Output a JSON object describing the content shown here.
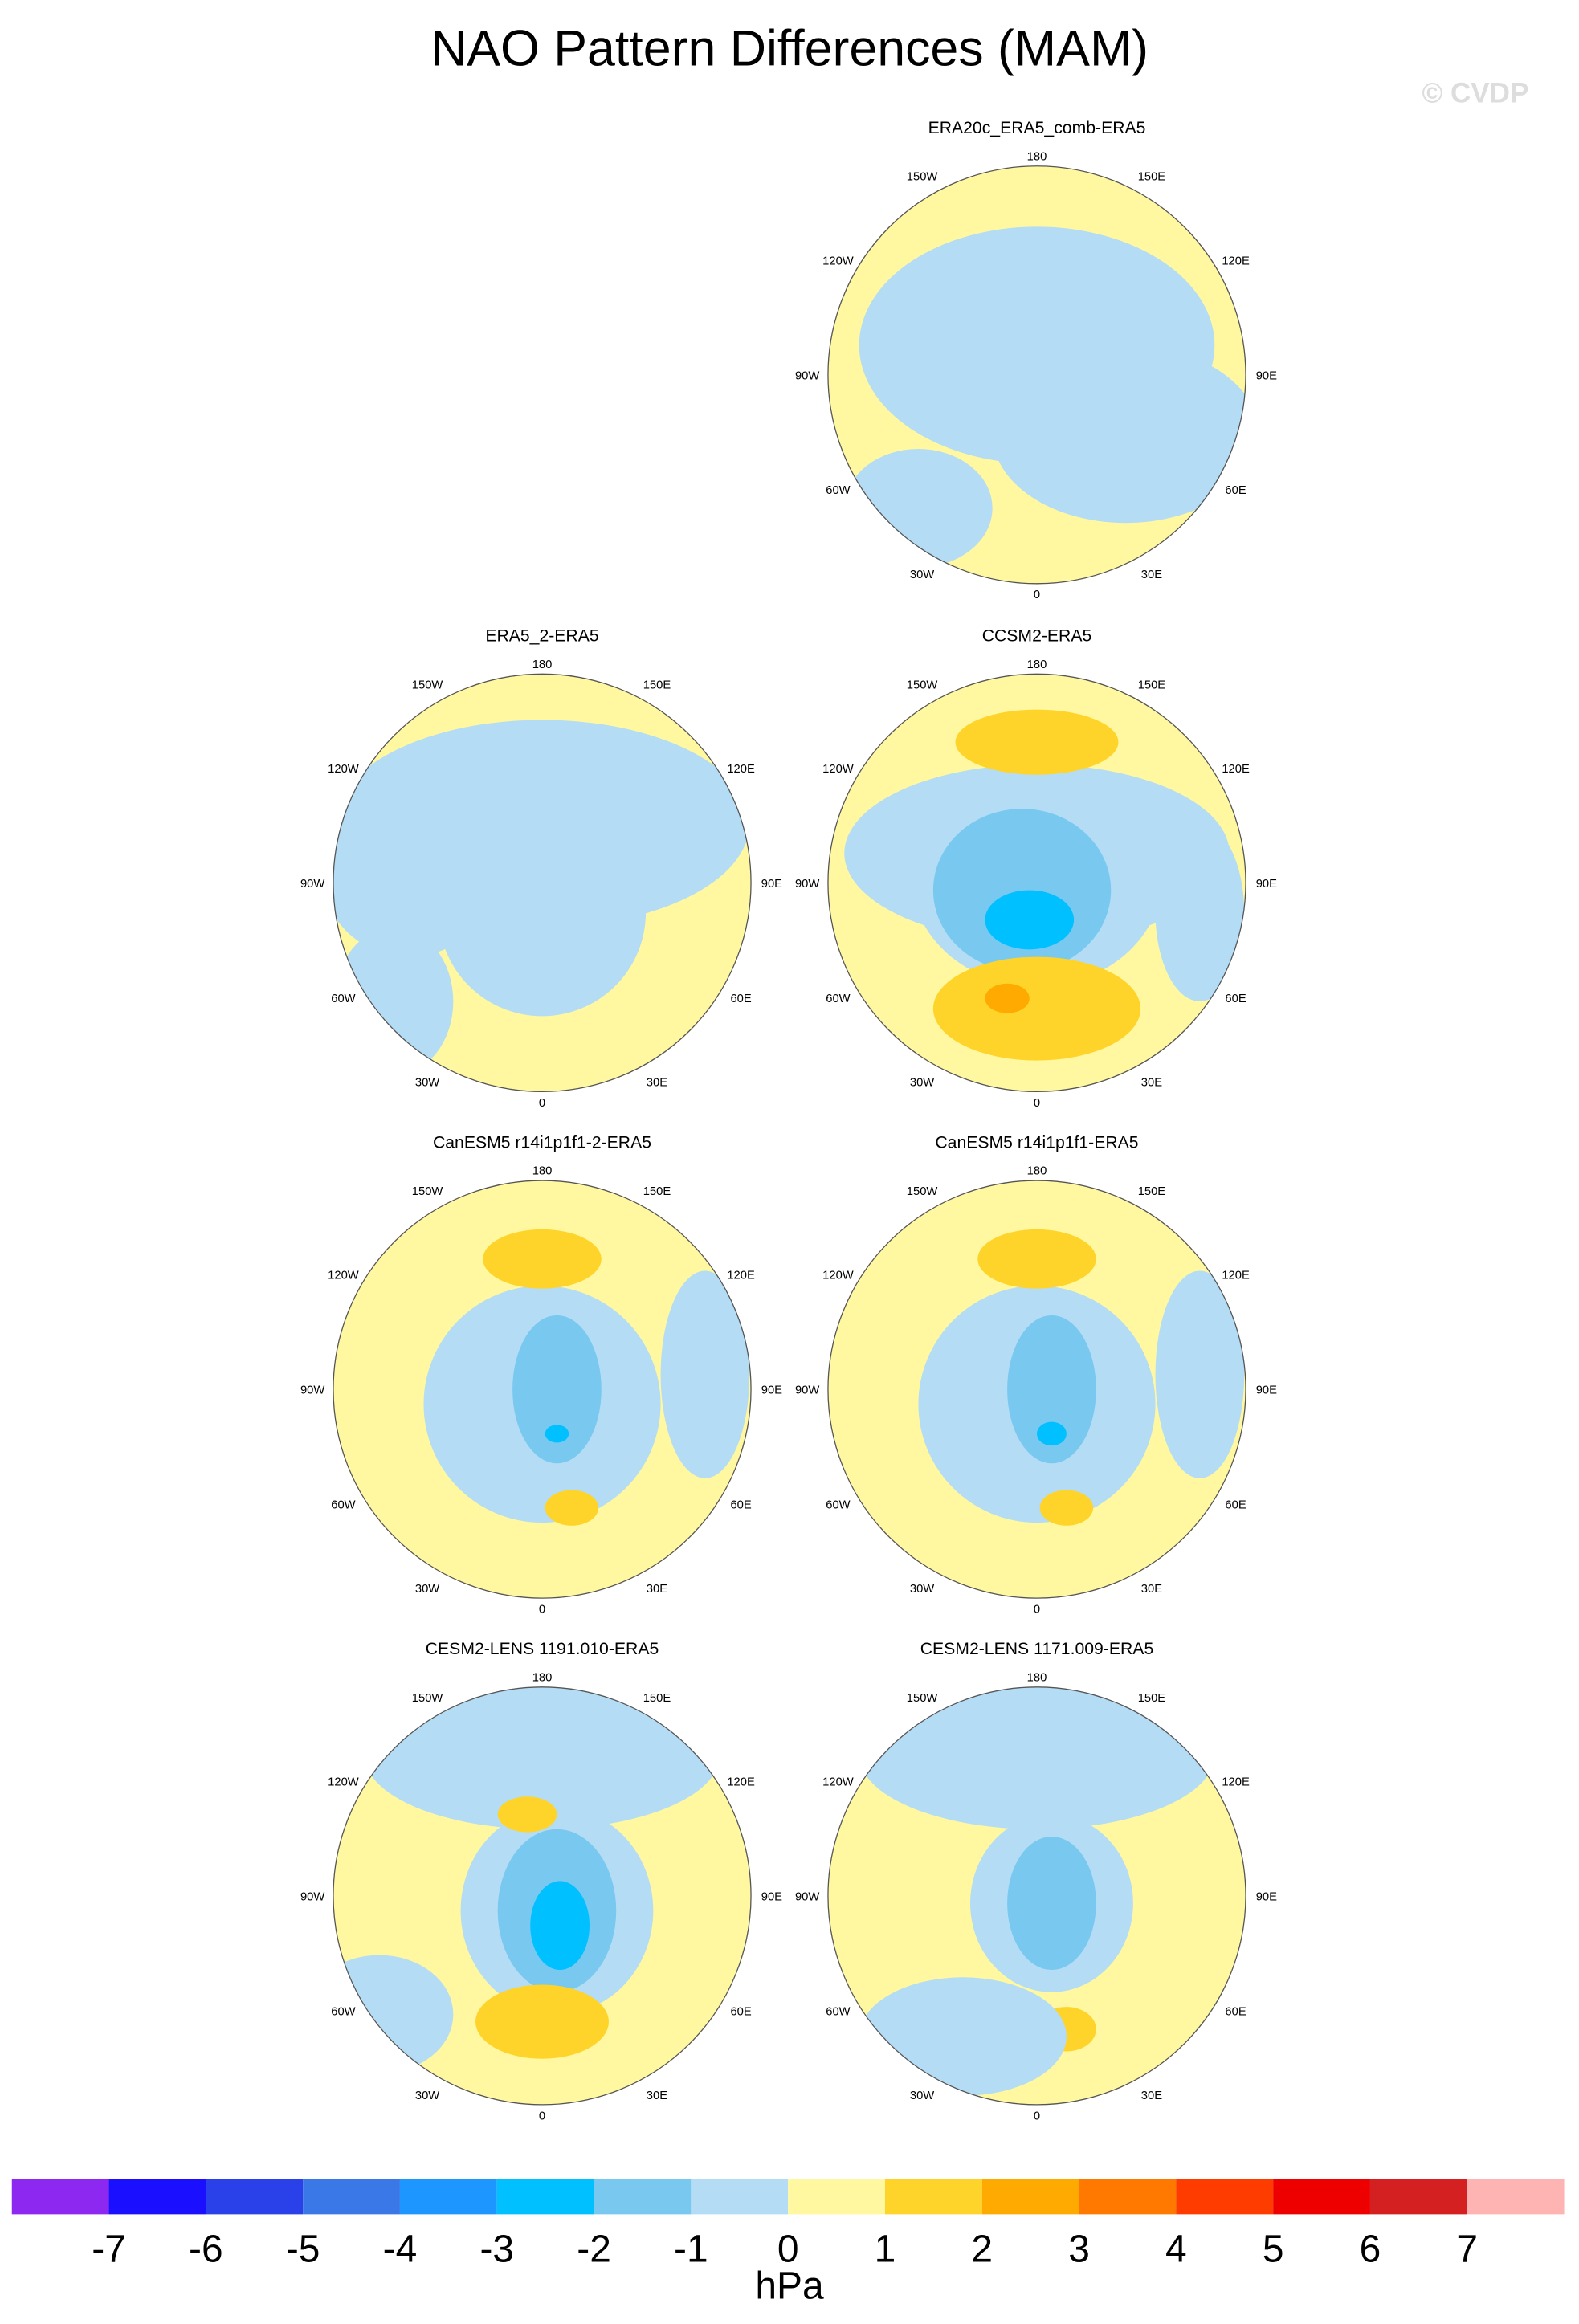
{
  "title": "NAO Pattern Differences (MAM)",
  "watermark": "© CVDP",
  "longitude_labels": [
    "180",
    "150E",
    "120E",
    "90E",
    "60E",
    "30E",
    "0",
    "30W",
    "60W",
    "90W",
    "120W",
    "150W"
  ],
  "panels": [
    {
      "title": "ERA20c_ERA5_comb-ERA5"
    },
    {
      "title": "ERA5_2-ERA5"
    },
    {
      "title": "CCSM2-ERA5"
    },
    {
      "title": "CanESM5 r14i1p1f1-2-ERA5"
    },
    {
      "title": "CanESM5 r14i1p1f1-ERA5"
    },
    {
      "title": "CESM2-LENS 1191.010-ERA5"
    },
    {
      "title": "CESM2-LENS 1171.009-ERA5"
    }
  ],
  "colorbar": {
    "ticks": [
      -7,
      -6,
      -5,
      -4,
      -3,
      -2,
      -1,
      0,
      1,
      2,
      3,
      4,
      5,
      6,
      7
    ],
    "colors": [
      "#8c28f0",
      "#1a10ff",
      "#2a40e8",
      "#3a78e8",
      "#1e96ff",
      "#00c0ff",
      "#78c8f0",
      "#b4dcf5",
      "#fff8a0",
      "#ffd42a",
      "#ffaa00",
      "#ff7800",
      "#ff3c00",
      "#ee0000",
      "#d42020",
      "#ffb4b4"
    ],
    "label": "hPa"
  }
}
